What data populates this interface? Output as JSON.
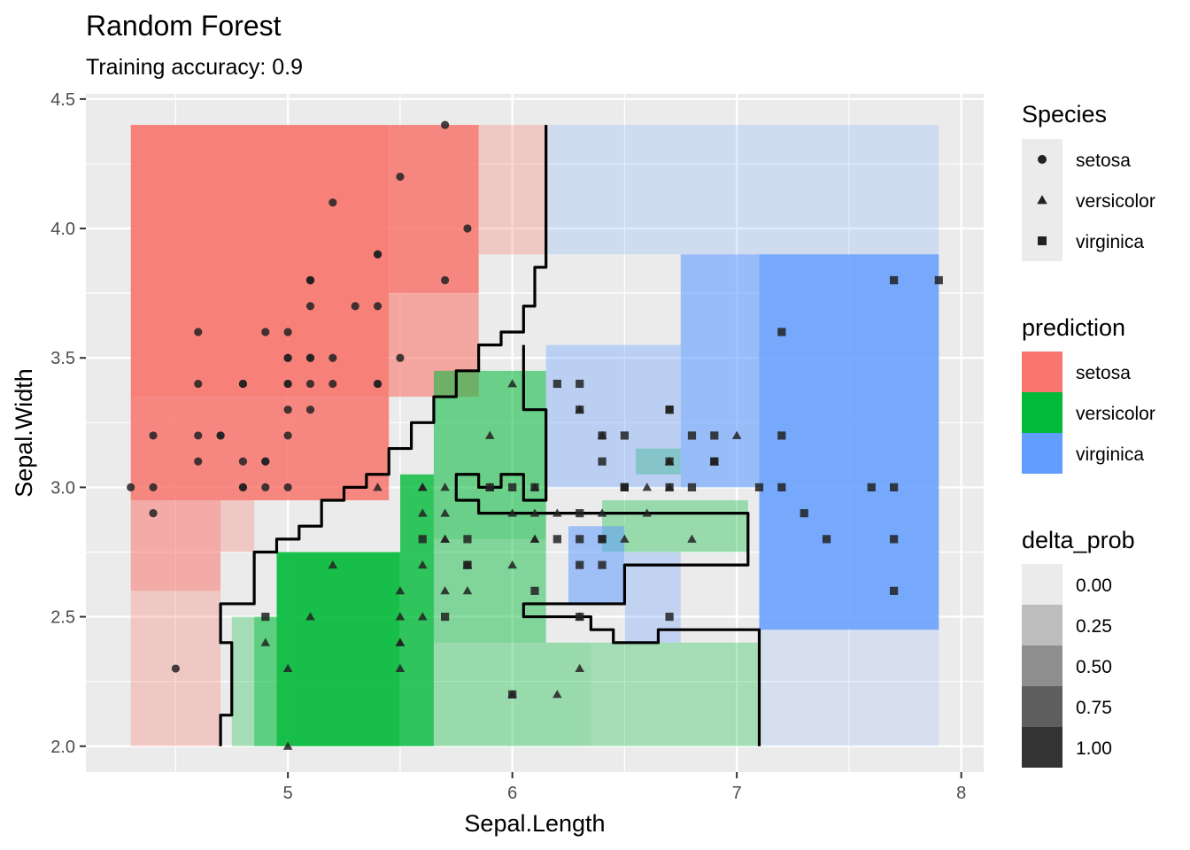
{
  "chart_data": {
    "type": "scatter",
    "title": "Random Forest",
    "subtitle": "Training accuracy: 0.9",
    "xlabel": "Sepal.Length",
    "ylabel": "Sepal.Width",
    "xlim": [
      4.1,
      8.1
    ],
    "ylim": [
      1.9,
      4.52
    ],
    "x_ticks": [
      5,
      6,
      7,
      8
    ],
    "y_ticks": [
      2.0,
      2.5,
      3.0,
      3.5,
      4.0,
      4.5
    ],
    "x_tick_labels": [
      "5",
      "6",
      "7",
      "8"
    ],
    "y_tick_labels": [
      "2.0",
      "2.5",
      "3.0",
      "3.5",
      "4.0",
      "4.5"
    ],
    "grid": true,
    "colors": {
      "setosa": "#f8766d",
      "versicolor": "#00ba38",
      "virginica": "#619cff",
      "panel": "#ebebeb",
      "grid": "#ffffff",
      "point": "#222222",
      "boundary": "#000000"
    },
    "legends": {
      "species": {
        "title": "Species",
        "items": [
          {
            "label": "setosa",
            "shape": "circle"
          },
          {
            "label": "versicolor",
            "shape": "triangle"
          },
          {
            "label": "virginica",
            "shape": "square"
          }
        ]
      },
      "prediction": {
        "title": "prediction",
        "items": [
          {
            "label": "setosa",
            "color": "#f8766d"
          },
          {
            "label": "versicolor",
            "color": "#00ba38"
          },
          {
            "label": "virginica",
            "color": "#619cff"
          }
        ]
      },
      "delta_prob": {
        "title": "delta_prob",
        "items": [
          {
            "label": "0.00",
            "color": "#ebebeb"
          },
          {
            "label": "0.25",
            "color": "#bdbdbd"
          },
          {
            "label": "0.50",
            "color": "#8e8e8e"
          },
          {
            "label": "0.75",
            "color": "#5e5e5e"
          },
          {
            "label": "1.00",
            "color": "#333333"
          }
        ]
      }
    },
    "regions": [
      {
        "prediction": "setosa",
        "x": [
          4.3,
          5.45
        ],
        "y": [
          3.35,
          4.4
        ],
        "delta_prob": 0.9
      },
      {
        "prediction": "setosa",
        "x": [
          4.3,
          5.45
        ],
        "y": [
          2.95,
          3.35
        ],
        "delta_prob": 0.85
      },
      {
        "prediction": "setosa",
        "x": [
          5.45,
          5.85
        ],
        "y": [
          3.75,
          4.4
        ],
        "delta_prob": 0.85
      },
      {
        "prediction": "setosa",
        "x": [
          5.45,
          5.85
        ],
        "y": [
          3.35,
          3.75
        ],
        "delta_prob": 0.6
      },
      {
        "prediction": "setosa",
        "x": [
          5.85,
          6.15
        ],
        "y": [
          3.9,
          4.4
        ],
        "delta_prob": 0.3
      },
      {
        "prediction": "setosa",
        "x": [
          4.3,
          4.7
        ],
        "y": [
          2.6,
          2.95
        ],
        "delta_prob": 0.55
      },
      {
        "prediction": "setosa",
        "x": [
          4.3,
          4.7
        ],
        "y": [
          2.0,
          2.6
        ],
        "delta_prob": 0.3
      },
      {
        "prediction": "setosa",
        "x": [
          4.7,
          4.85
        ],
        "y": [
          2.75,
          2.95
        ],
        "delta_prob": 0.3
      },
      {
        "prediction": "versicolor",
        "x": [
          4.95,
          5.5
        ],
        "y": [
          2.0,
          2.75
        ],
        "delta_prob": 0.9
      },
      {
        "prediction": "versicolor",
        "x": [
          5.5,
          5.65
        ],
        "y": [
          2.0,
          3.05
        ],
        "delta_prob": 0.8
      },
      {
        "prediction": "versicolor",
        "x": [
          5.65,
          6.15
        ],
        "y": [
          2.8,
          3.45
        ],
        "delta_prob": 0.55
      },
      {
        "prediction": "versicolor",
        "x": [
          5.65,
          6.15
        ],
        "y": [
          2.4,
          2.8
        ],
        "delta_prob": 0.45
      },
      {
        "prediction": "versicolor",
        "x": [
          5.65,
          6.35
        ],
        "y": [
          2.0,
          2.4
        ],
        "delta_prob": 0.35
      },
      {
        "prediction": "versicolor",
        "x": [
          6.35,
          7.1
        ],
        "y": [
          2.0,
          2.4
        ],
        "delta_prob": 0.3
      },
      {
        "prediction": "versicolor",
        "x": [
          4.85,
          4.95
        ],
        "y": [
          2.0,
          2.5
        ],
        "delta_prob": 0.6
      },
      {
        "prediction": "versicolor",
        "x": [
          4.75,
          4.85
        ],
        "y": [
          2.0,
          2.5
        ],
        "delta_prob": 0.3
      },
      {
        "prediction": "versicolor",
        "x": [
          6.4,
          7.05
        ],
        "y": [
          2.75,
          2.95
        ],
        "delta_prob": 0.35
      },
      {
        "prediction": "versicolor",
        "x": [
          6.55,
          6.75
        ],
        "y": [
          3.05,
          3.15
        ],
        "delta_prob": 0.35
      },
      {
        "prediction": "virginica",
        "x": [
          7.1,
          7.9
        ],
        "y": [
          2.45,
          3.9
        ],
        "delta_prob": 0.85
      },
      {
        "prediction": "virginica",
        "x": [
          6.75,
          7.1
        ],
        "y": [
          3.0,
          3.9
        ],
        "delta_prob": 0.6
      },
      {
        "prediction": "virginica",
        "x": [
          6.15,
          6.75
        ],
        "y": [
          3.0,
          3.55
        ],
        "delta_prob": 0.35
      },
      {
        "prediction": "virginica",
        "x": [
          6.25,
          6.5
        ],
        "y": [
          2.55,
          2.85
        ],
        "delta_prob": 0.55
      },
      {
        "prediction": "virginica",
        "x": [
          6.5,
          6.75
        ],
        "y": [
          2.4,
          2.75
        ],
        "delta_prob": 0.3
      },
      {
        "prediction": "virginica",
        "x": [
          6.15,
          7.9
        ],
        "y": [
          3.9,
          4.4
        ],
        "delta_prob": 0.2
      },
      {
        "prediction": "virginica",
        "x": [
          7.1,
          7.9
        ],
        "y": [
          2.0,
          2.45
        ],
        "delta_prob": 0.15
      }
    ],
    "boundaries": [
      {
        "name": "setosa-versicolor boundary",
        "points": [
          [
            4.7,
            2.0
          ],
          [
            4.7,
            2.12
          ],
          [
            4.75,
            2.12
          ],
          [
            4.75,
            2.4
          ],
          [
            4.7,
            2.4
          ],
          [
            4.7,
            2.55
          ],
          [
            4.85,
            2.55
          ],
          [
            4.85,
            2.75
          ],
          [
            4.95,
            2.75
          ],
          [
            4.95,
            2.8
          ],
          [
            5.05,
            2.8
          ],
          [
            5.05,
            2.85
          ],
          [
            5.15,
            2.85
          ],
          [
            5.15,
            2.95
          ],
          [
            5.25,
            2.95
          ],
          [
            5.25,
            3.0
          ],
          [
            5.35,
            3.0
          ],
          [
            5.35,
            3.05
          ],
          [
            5.45,
            3.05
          ],
          [
            5.45,
            3.15
          ],
          [
            5.55,
            3.15
          ],
          [
            5.55,
            3.25
          ],
          [
            5.65,
            3.25
          ],
          [
            5.65,
            3.35
          ],
          [
            5.75,
            3.35
          ],
          [
            5.75,
            3.45
          ],
          [
            5.85,
            3.45
          ],
          [
            5.85,
            3.55
          ],
          [
            5.95,
            3.55
          ],
          [
            5.95,
            3.6
          ],
          [
            6.05,
            3.6
          ],
          [
            6.05,
            3.7
          ],
          [
            6.1,
            3.7
          ],
          [
            6.1,
            3.85
          ],
          [
            6.15,
            3.85
          ],
          [
            6.15,
            4.4
          ]
        ]
      },
      {
        "name": "versicolor-virginica boundary",
        "points": [
          [
            6.05,
            3.55
          ],
          [
            6.05,
            3.3
          ],
          [
            6.15,
            3.3
          ],
          [
            6.15,
            2.95
          ],
          [
            6.05,
            2.95
          ],
          [
            6.05,
            3.05
          ],
          [
            5.95,
            3.05
          ],
          [
            5.95,
            3.0
          ],
          [
            5.85,
            3.0
          ],
          [
            5.85,
            3.05
          ],
          [
            5.75,
            3.05
          ],
          [
            5.75,
            2.95
          ],
          [
            5.85,
            2.95
          ],
          [
            5.85,
            2.9
          ],
          [
            7.05,
            2.9
          ],
          [
            7.05,
            2.7
          ],
          [
            6.5,
            2.7
          ],
          [
            6.5,
            2.55
          ],
          [
            6.05,
            2.55
          ],
          [
            6.05,
            2.5
          ],
          [
            6.35,
            2.5
          ],
          [
            6.35,
            2.45
          ],
          [
            6.45,
            2.45
          ],
          [
            6.45,
            2.4
          ],
          [
            6.65,
            2.4
          ],
          [
            6.65,
            2.45
          ],
          [
            7.1,
            2.45
          ],
          [
            7.1,
            2.0
          ]
        ]
      }
    ],
    "series": [
      {
        "name": "setosa",
        "shape": "circle",
        "points": [
          [
            5.1,
            3.5
          ],
          [
            4.9,
            3.0
          ],
          [
            4.7,
            3.2
          ],
          [
            4.6,
            3.1
          ],
          [
            5.0,
            3.6
          ],
          [
            5.4,
            3.9
          ],
          [
            4.6,
            3.4
          ],
          [
            5.0,
            3.4
          ],
          [
            4.4,
            2.9
          ],
          [
            4.9,
            3.1
          ],
          [
            5.4,
            3.7
          ],
          [
            4.8,
            3.4
          ],
          [
            4.8,
            3.0
          ],
          [
            4.3,
            3.0
          ],
          [
            5.8,
            4.0
          ],
          [
            5.7,
            4.4
          ],
          [
            5.4,
            3.9
          ],
          [
            5.1,
            3.5
          ],
          [
            5.7,
            3.8
          ],
          [
            5.1,
            3.8
          ],
          [
            5.4,
            3.4
          ],
          [
            5.1,
            3.7
          ],
          [
            4.6,
            3.6
          ],
          [
            5.1,
            3.3
          ],
          [
            4.8,
            3.4
          ],
          [
            5.0,
            3.0
          ],
          [
            5.0,
            3.4
          ],
          [
            5.2,
            3.5
          ],
          [
            5.2,
            3.4
          ],
          [
            4.7,
            3.2
          ],
          [
            4.8,
            3.1
          ],
          [
            5.4,
            3.4
          ],
          [
            5.2,
            4.1
          ],
          [
            5.5,
            4.2
          ],
          [
            4.9,
            3.1
          ],
          [
            5.0,
            3.2
          ],
          [
            5.5,
            3.5
          ],
          [
            4.9,
            3.6
          ],
          [
            4.4,
            3.0
          ],
          [
            5.1,
            3.4
          ],
          [
            5.0,
            3.5
          ],
          [
            4.5,
            2.3
          ],
          [
            4.4,
            3.2
          ],
          [
            5.0,
            3.5
          ],
          [
            5.1,
            3.8
          ],
          [
            4.8,
            3.0
          ],
          [
            5.1,
            3.8
          ],
          [
            4.6,
            3.2
          ],
          [
            5.3,
            3.7
          ],
          [
            5.0,
            3.3
          ]
        ]
      },
      {
        "name": "versicolor",
        "shape": "triangle",
        "points": [
          [
            7.0,
            3.2
          ],
          [
            6.4,
            3.2
          ],
          [
            6.9,
            3.1
          ],
          [
            5.5,
            2.3
          ],
          [
            6.5,
            2.8
          ],
          [
            5.7,
            2.8
          ],
          [
            6.3,
            3.3
          ],
          [
            4.9,
            2.4
          ],
          [
            6.6,
            2.9
          ],
          [
            5.2,
            2.7
          ],
          [
            5.0,
            2.0
          ],
          [
            5.9,
            3.0
          ],
          [
            6.0,
            2.2
          ],
          [
            6.1,
            2.9
          ],
          [
            5.6,
            2.9
          ],
          [
            6.7,
            3.1
          ],
          [
            5.6,
            3.0
          ],
          [
            5.8,
            2.7
          ],
          [
            6.2,
            2.2
          ],
          [
            5.6,
            2.5
          ],
          [
            5.9,
            3.2
          ],
          [
            6.1,
            2.8
          ],
          [
            6.3,
            2.5
          ],
          [
            6.1,
            2.8
          ],
          [
            6.4,
            2.9
          ],
          [
            6.6,
            3.0
          ],
          [
            6.8,
            2.8
          ],
          [
            6.7,
            3.0
          ],
          [
            6.0,
            2.9
          ],
          [
            5.7,
            2.6
          ],
          [
            5.5,
            2.4
          ],
          [
            5.5,
            2.4
          ],
          [
            5.8,
            2.7
          ],
          [
            6.0,
            2.7
          ],
          [
            5.4,
            3.0
          ],
          [
            6.0,
            3.4
          ],
          [
            6.7,
            3.1
          ],
          [
            6.3,
            2.3
          ],
          [
            5.6,
            3.0
          ],
          [
            5.5,
            2.5
          ],
          [
            5.5,
            2.6
          ],
          [
            6.1,
            3.0
          ],
          [
            5.8,
            2.6
          ],
          [
            5.0,
            2.3
          ],
          [
            5.6,
            2.7
          ],
          [
            5.7,
            3.0
          ],
          [
            5.7,
            2.9
          ],
          [
            6.2,
            2.9
          ],
          [
            5.1,
            2.5
          ],
          [
            5.7,
            2.8
          ]
        ]
      },
      {
        "name": "virginica",
        "shape": "square",
        "points": [
          [
            6.3,
            3.3
          ],
          [
            5.8,
            2.7
          ],
          [
            7.1,
            3.0
          ],
          [
            6.3,
            2.9
          ],
          [
            6.5,
            3.0
          ],
          [
            7.6,
            3.0
          ],
          [
            4.9,
            2.5
          ],
          [
            7.3,
            2.9
          ],
          [
            6.7,
            2.5
          ],
          [
            7.2,
            3.6
          ],
          [
            6.5,
            3.2
          ],
          [
            6.4,
            2.7
          ],
          [
            6.8,
            3.0
          ],
          [
            5.7,
            2.5
          ],
          [
            5.8,
            2.8
          ],
          [
            6.4,
            3.2
          ],
          [
            6.5,
            3.0
          ],
          [
            7.7,
            3.8
          ],
          [
            7.7,
            2.6
          ],
          [
            6.0,
            2.2
          ],
          [
            6.9,
            3.2
          ],
          [
            5.6,
            2.8
          ],
          [
            7.7,
            2.8
          ],
          [
            6.3,
            2.7
          ],
          [
            6.7,
            3.3
          ],
          [
            7.2,
            3.2
          ],
          [
            6.2,
            2.8
          ],
          [
            6.1,
            3.0
          ],
          [
            6.4,
            2.8
          ],
          [
            7.2,
            3.0
          ],
          [
            7.4,
            2.8
          ],
          [
            7.9,
            3.8
          ],
          [
            6.4,
            2.8
          ],
          [
            6.3,
            2.8
          ],
          [
            6.1,
            2.6
          ],
          [
            7.7,
            3.0
          ],
          [
            6.3,
            3.4
          ],
          [
            6.4,
            3.1
          ],
          [
            6.0,
            3.0
          ],
          [
            6.9,
            3.1
          ],
          [
            6.7,
            3.1
          ],
          [
            6.9,
            3.1
          ],
          [
            5.8,
            2.7
          ],
          [
            6.8,
            3.2
          ],
          [
            6.7,
            3.3
          ],
          [
            6.7,
            3.0
          ],
          [
            6.3,
            2.5
          ],
          [
            6.5,
            3.0
          ],
          [
            6.2,
            3.4
          ],
          [
            5.9,
            3.0
          ]
        ]
      }
    ]
  }
}
